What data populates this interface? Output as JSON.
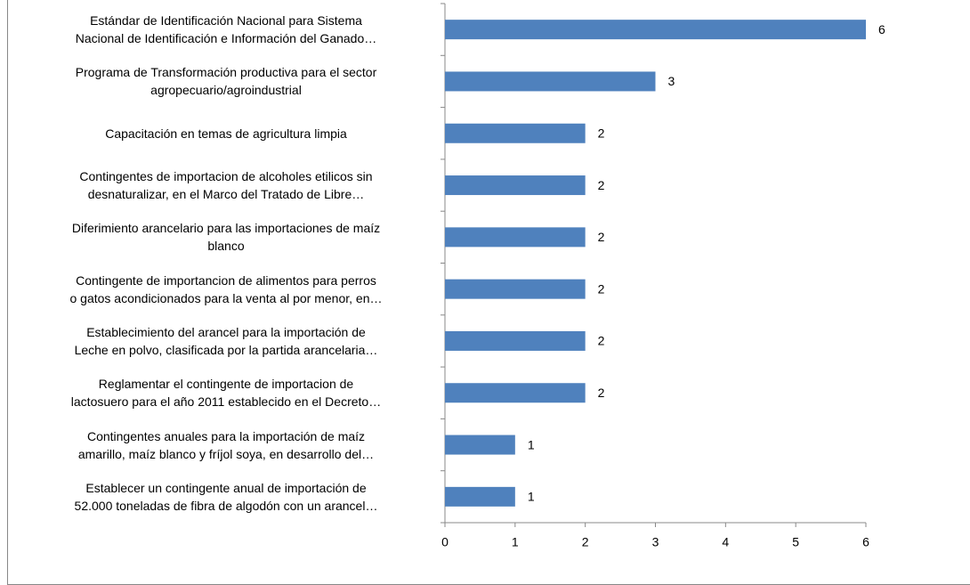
{
  "chart_data": {
    "type": "hbar",
    "categories": [
      "Estándar de Identificación Nacional para Sistema\nNacional de Identificación e Información del Ganado…",
      "Programa de Transformación productiva para el sector\nagropecuario/agroindustrial",
      "Capacitación en temas de agricultura limpia",
      "Contingentes de importacion de alcoholes etilicos sin\ndesnaturalizar, en el Marco del Tratado de Libre…",
      "Diferimiento arancelario para las importaciones de maíz\nblanco",
      "Contingente de importancion de alimentos para perros\no gatos acondicionados para la venta al por menor, en…",
      "Establecimiento del arancel para la importación de\nLeche en polvo, clasificada por la partida arancelaria…",
      "Reglamentar el contingente de importacion de\nlactosuero para el año 2011 establecido en el Decreto…",
      "Contingentes anuales para la importación de maíz\namarillo, maíz blanco y fríjol soya, en desarrollo del…",
      "Establecer un contingente anual de importación de\n52.000 toneladas de fibra de algodón con un arancel…"
    ],
    "values": [
      6,
      3,
      2,
      2,
      2,
      2,
      2,
      2,
      1,
      1
    ],
    "color": "#4f81bd",
    "xlim": [
      0,
      6
    ],
    "xticks": [
      0,
      1,
      2,
      3,
      4,
      5,
      6
    ]
  }
}
